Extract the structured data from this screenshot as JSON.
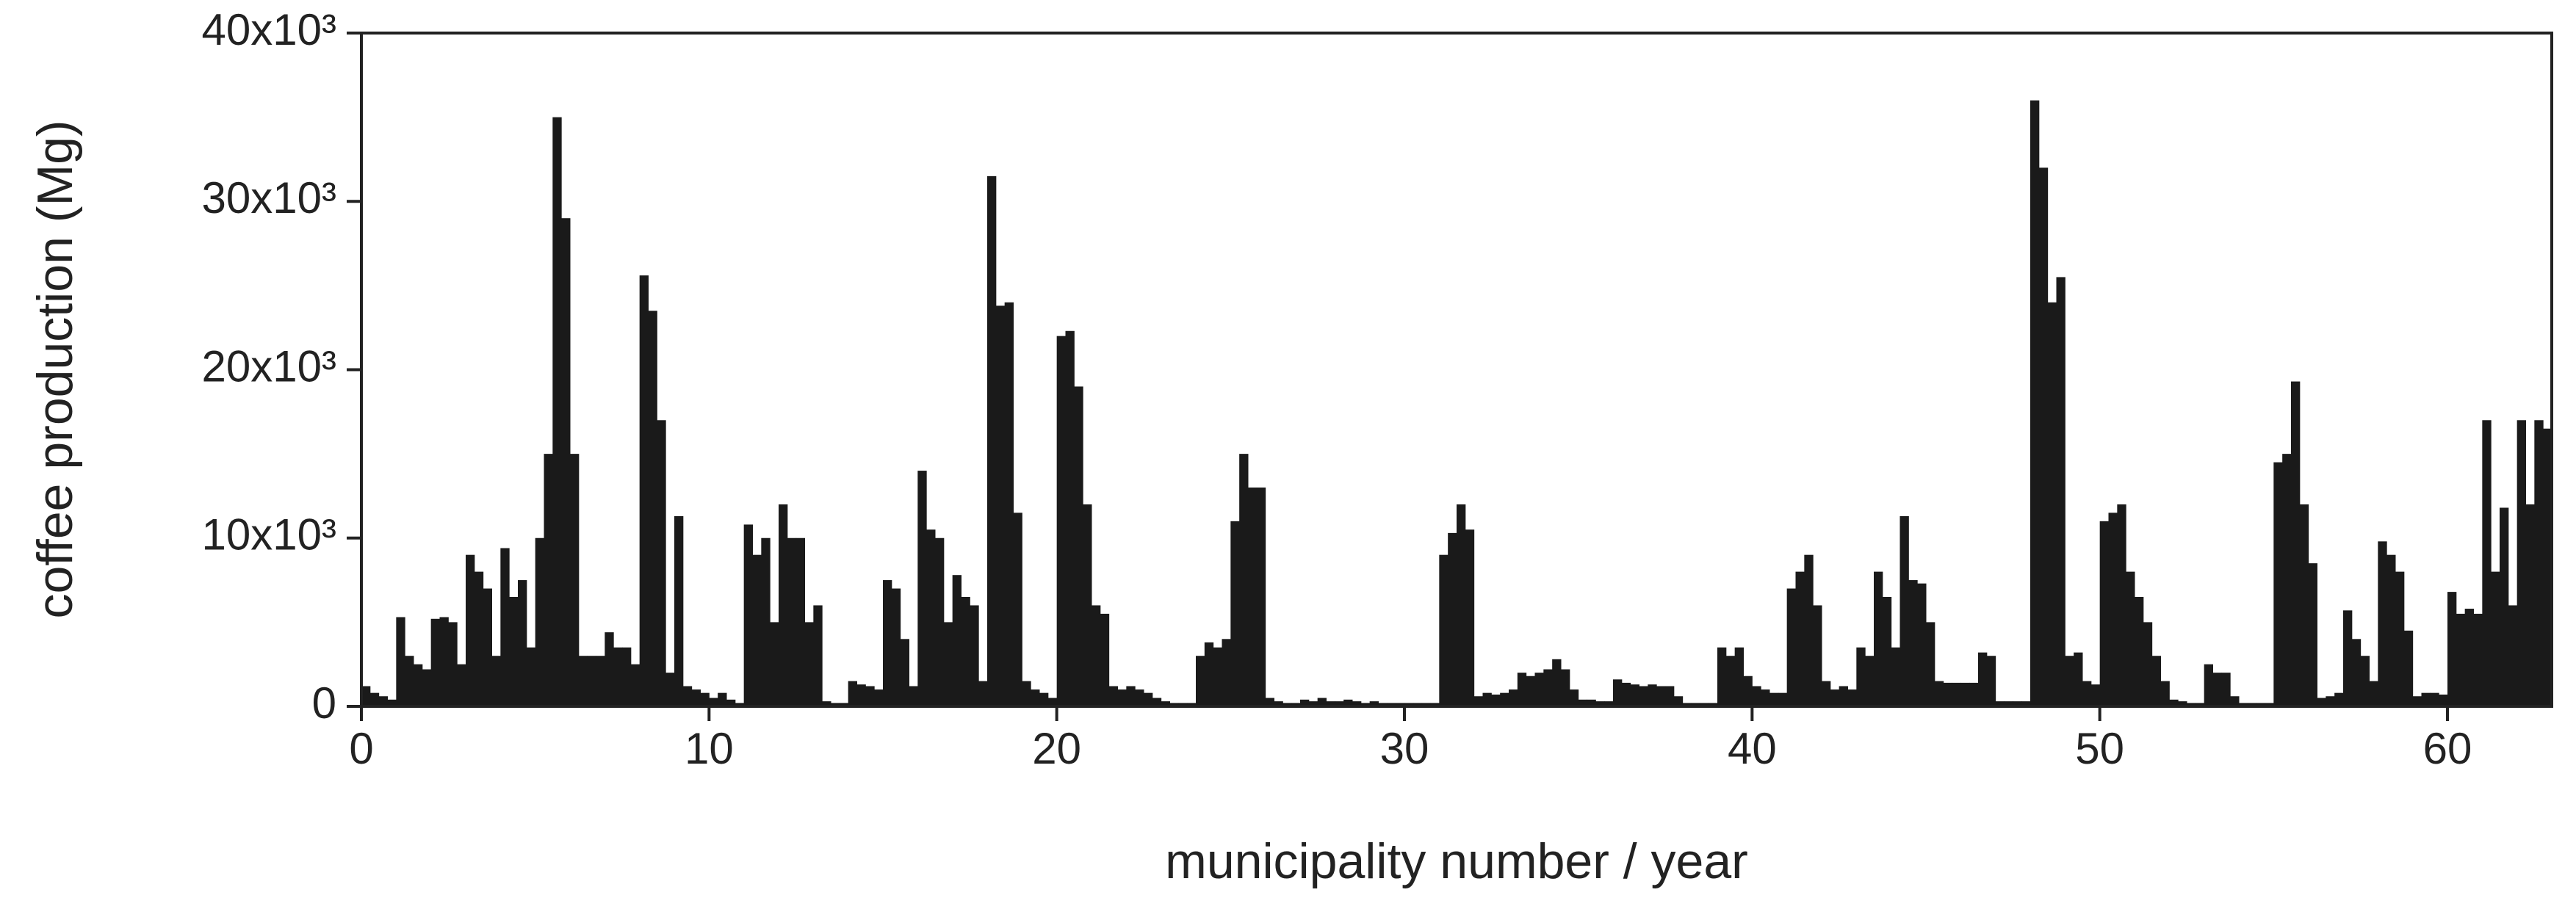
{
  "chart_data": {
    "type": "bar",
    "x_label": "municipality number / year",
    "y_label": "coffee production (Mg)",
    "color": "#1a1a1a",
    "xlim": [
      0,
      63
    ],
    "xticks": [
      0,
      10,
      20,
      30,
      40,
      50,
      60
    ],
    "ylim": [
      0,
      40000
    ],
    "yticks": [
      0,
      {
        "value": 10000,
        "label": "10x10³"
      },
      {
        "value": 20000,
        "label": "20x10³"
      },
      {
        "value": 30000,
        "label": "30x10³"
      },
      {
        "value": 40000,
        "label": "40x10³"
      }
    ],
    "x": [
      0,
      0.25,
      0.5,
      0.75,
      1,
      1.25,
      1.5,
      1.75,
      2,
      2.25,
      2.5,
      2.75,
      3,
      3.25,
      3.5,
      3.75,
      4,
      4.25,
      4.5,
      4.75,
      5,
      5.25,
      5.5,
      5.75,
      6,
      6.25,
      6.5,
      6.75,
      7,
      7.25,
      7.5,
      7.75,
      8,
      8.25,
      8.5,
      8.75,
      9,
      9.25,
      9.5,
      9.75,
      10,
      10.25,
      10.5,
      10.75,
      11,
      11.25,
      11.5,
      11.75,
      12,
      12.25,
      12.5,
      12.75,
      13,
      13.25,
      13.5,
      13.75,
      14,
      14.25,
      14.5,
      14.75,
      15,
      15.25,
      15.5,
      15.75,
      16,
      16.25,
      16.5,
      16.75,
      17,
      17.25,
      17.5,
      17.75,
      18,
      18.25,
      18.5,
      18.75,
      19,
      19.25,
      19.5,
      19.75,
      20,
      20.25,
      20.5,
      20.75,
      21,
      21.25,
      21.5,
      21.75,
      22,
      22.25,
      22.5,
      22.75,
      23,
      23.25,
      23.5,
      23.75,
      24,
      24.25,
      24.5,
      24.75,
      25,
      25.25,
      25.5,
      25.75,
      26,
      26.25,
      26.5,
      26.75,
      27,
      27.25,
      27.5,
      27.75,
      28,
      28.25,
      28.5,
      28.75,
      29,
      29.25,
      29.5,
      29.75,
      30,
      30.25,
      30.5,
      30.75,
      31,
      31.25,
      31.5,
      31.75,
      32,
      32.25,
      32.5,
      32.75,
      33,
      33.25,
      33.5,
      33.75,
      34,
      34.25,
      34.5,
      34.75,
      35,
      35.25,
      35.5,
      35.75,
      36,
      36.25,
      36.5,
      36.75,
      37,
      37.25,
      37.5,
      37.75,
      38,
      38.25,
      38.5,
      38.75,
      39,
      39.25,
      39.5,
      39.75,
      40,
      40.25,
      40.5,
      40.75,
      41,
      41.25,
      41.5,
      41.75,
      42,
      42.25,
      42.5,
      42.75,
      43,
      43.25,
      43.5,
      43.75,
      44,
      44.25,
      44.5,
      44.75,
      45,
      45.25,
      45.5,
      45.75,
      46,
      46.25,
      46.5,
      46.75,
      47,
      47.25,
      47.5,
      47.75,
      48,
      48.25,
      48.5,
      48.75,
      49,
      49.25,
      49.5,
      49.75,
      50,
      50.25,
      50.5,
      50.75,
      51,
      51.25,
      51.5,
      51.75,
      52,
      52.25,
      52.5,
      52.75,
      53,
      53.25,
      53.5,
      53.75,
      54,
      54.25,
      54.5,
      54.75,
      55,
      55.25,
      55.5,
      55.75,
      56,
      56.25,
      56.5,
      56.75,
      57,
      57.25,
      57.5,
      57.75,
      58,
      58.25,
      58.5,
      58.75,
      59,
      59.25,
      59.5,
      59.75,
      60,
      60.25,
      60.5,
      60.75,
      61,
      61.25,
      61.5,
      61.75,
      62,
      62.25,
      62.5,
      62.75
    ],
    "values": [
      1200,
      800,
      600,
      400,
      5300,
      3000,
      2500,
      2200,
      5200,
      5300,
      5000,
      2500,
      9000,
      8000,
      7000,
      3000,
      9400,
      6500,
      7500,
      3500,
      10000,
      15000,
      35000,
      29000,
      15000,
      3000,
      3000,
      3000,
      4400,
      3500,
      3500,
      2500,
      25600,
      23500,
      17000,
      2000,
      11300,
      1200,
      1000,
      800,
      500,
      800,
      400,
      200,
      10800,
      9000,
      10000,
      5000,
      12000,
      10000,
      10000,
      5000,
      6000,
      300,
      200,
      200,
      1500,
      1300,
      1200,
      1000,
      7500,
      7000,
      4000,
      1200,
      14000,
      10500,
      10000,
      5000,
      7800,
      6500,
      6000,
      1500,
      31500,
      23800,
      24000,
      11500,
      1500,
      1000,
      800,
      500,
      22000,
      22300,
      19000,
      12000,
      6000,
      5500,
      1200,
      1000,
      1200,
      1000,
      800,
      500,
      300,
      200,
      200,
      200,
      3000,
      3800,
      3500,
      4000,
      11000,
      15000,
      13000,
      13000,
      500,
      300,
      200,
      200,
      400,
      300,
      500,
      300,
      300,
      400,
      300,
      200,
      300,
      200,
      200,
      200,
      200,
      200,
      200,
      200,
      9000,
      10300,
      12000,
      10500,
      600,
      800,
      700,
      800,
      1000,
      2000,
      1800,
      2000,
      2200,
      2800,
      2200,
      1000,
      400,
      400,
      300,
      300,
      1600,
      1400,
      1300,
      1200,
      1300,
      1200,
      1200,
      600,
      200,
      200,
      200,
      200,
      3500,
      3000,
      3500,
      1800,
      1200,
      1000,
      800,
      800,
      7000,
      8000,
      9000,
      6000,
      1500,
      1000,
      1200,
      1000,
      3500,
      3000,
      8000,
      6500,
      3500,
      11300,
      7500,
      7300,
      5000,
      1500,
      1400,
      1400,
      1400,
      1400,
      3200,
      3000,
      300,
      300,
      300,
      300,
      36000,
      32000,
      24000,
      25500,
      3000,
      3200,
      1500,
      1300,
      11000,
      11500,
      12000,
      8000,
      6500,
      5000,
      3000,
      1500,
      400,
      300,
      200,
      200,
      2500,
      2000,
      2000,
      600,
      200,
      200,
      200,
      200,
      14500,
      15000,
      19300,
      12000,
      8500,
      500,
      600,
      800,
      5700,
      4000,
      3000,
      1500,
      9800,
      9000,
      8000,
      4500,
      600,
      800,
      800,
      700,
      6800,
      5500,
      5800,
      5500,
      17000,
      8000,
      11800,
      6000,
      17000,
      12000,
      17000,
      16500
    ]
  }
}
